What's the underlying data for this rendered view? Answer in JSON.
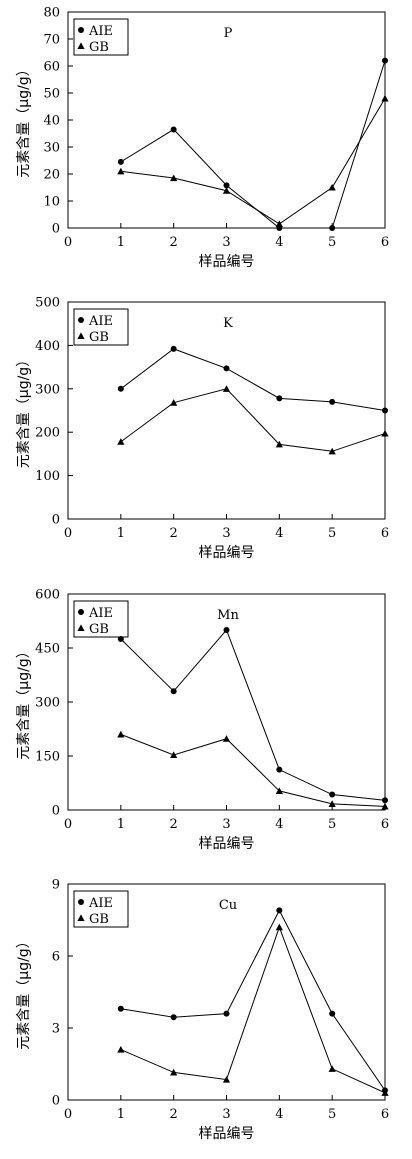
{
  "chart_data": [
    {
      "type": "line",
      "element": "P",
      "xlabel": "样品编号",
      "ylabel": "元素含量（μg/g）",
      "x": [
        1,
        2,
        3,
        4,
        5,
        6
      ],
      "xlim": [
        0,
        6
      ],
      "xticks": [
        "0",
        "1",
        "2",
        "3",
        "4",
        "5",
        "6"
      ],
      "ylim": [
        0,
        80
      ],
      "yticks": [
        "0",
        "10",
        "20",
        "30",
        "40",
        "50",
        "60",
        "70",
        "80"
      ],
      "legend_position": "top-left",
      "series": [
        {
          "name": "AIE",
          "marker": "circle",
          "values": [
            24.5,
            36.5,
            15.8,
            0,
            0,
            62
          ]
        },
        {
          "name": "GB",
          "marker": "triangle",
          "values": [
            21,
            18.5,
            13.8,
            1.5,
            15,
            48
          ]
        }
      ]
    },
    {
      "type": "line",
      "element": "K",
      "xlabel": "样品编号",
      "ylabel": "元素含量（μg/g）",
      "x": [
        1,
        2,
        3,
        4,
        5,
        6
      ],
      "xlim": [
        0,
        6
      ],
      "xticks": [
        "0",
        "1",
        "2",
        "3",
        "4",
        "5",
        "6"
      ],
      "ylim": [
        0,
        500
      ],
      "yticks": [
        "0",
        "100",
        "200",
        "300",
        "400",
        "500"
      ],
      "legend_position": "top-left",
      "series": [
        {
          "name": "AIE",
          "marker": "circle",
          "values": [
            300,
            392,
            347,
            278,
            270,
            250
          ]
        },
        {
          "name": "GB",
          "marker": "triangle",
          "values": [
            178,
            268,
            300,
            172,
            156,
            197
          ]
        }
      ]
    },
    {
      "type": "line",
      "element": "Mn",
      "xlabel": "样品编号",
      "ylabel": "元素含量（μg/g）",
      "x": [
        1,
        2,
        3,
        4,
        5,
        6
      ],
      "xlim": [
        0,
        6
      ],
      "xticks": [
        "0",
        "1",
        "2",
        "3",
        "4",
        "5",
        "6"
      ],
      "ylim": [
        0,
        600
      ],
      "yticks": [
        "0",
        "150",
        "300",
        "450",
        "600"
      ],
      "legend_position": "top-left",
      "series": [
        {
          "name": "AIE",
          "marker": "circle",
          "values": [
            475,
            330,
            500,
            112,
            43,
            27
          ]
        },
        {
          "name": "GB",
          "marker": "triangle",
          "values": [
            210,
            153,
            198,
            53,
            17,
            10
          ]
        }
      ]
    },
    {
      "type": "line",
      "element": "Cu",
      "xlabel": "样品编号",
      "ylabel": "元素含量（μg/g）",
      "x": [
        1,
        2,
        3,
        4,
        5,
        6
      ],
      "xlim": [
        0,
        6
      ],
      "xticks": [
        "0",
        "1",
        "2",
        "3",
        "4",
        "5",
        "6"
      ],
      "ylim": [
        0,
        9
      ],
      "yticks": [
        "0",
        "3",
        "6",
        "9"
      ],
      "legend_position": "top-left",
      "series": [
        {
          "name": "AIE",
          "marker": "circle",
          "values": [
            3.8,
            3.45,
            3.6,
            7.9,
            3.6,
            0.4
          ]
        },
        {
          "name": "GB",
          "marker": "triangle",
          "values": [
            2.1,
            1.15,
            0.85,
            7.2,
            1.3,
            0.3
          ]
        }
      ]
    }
  ]
}
